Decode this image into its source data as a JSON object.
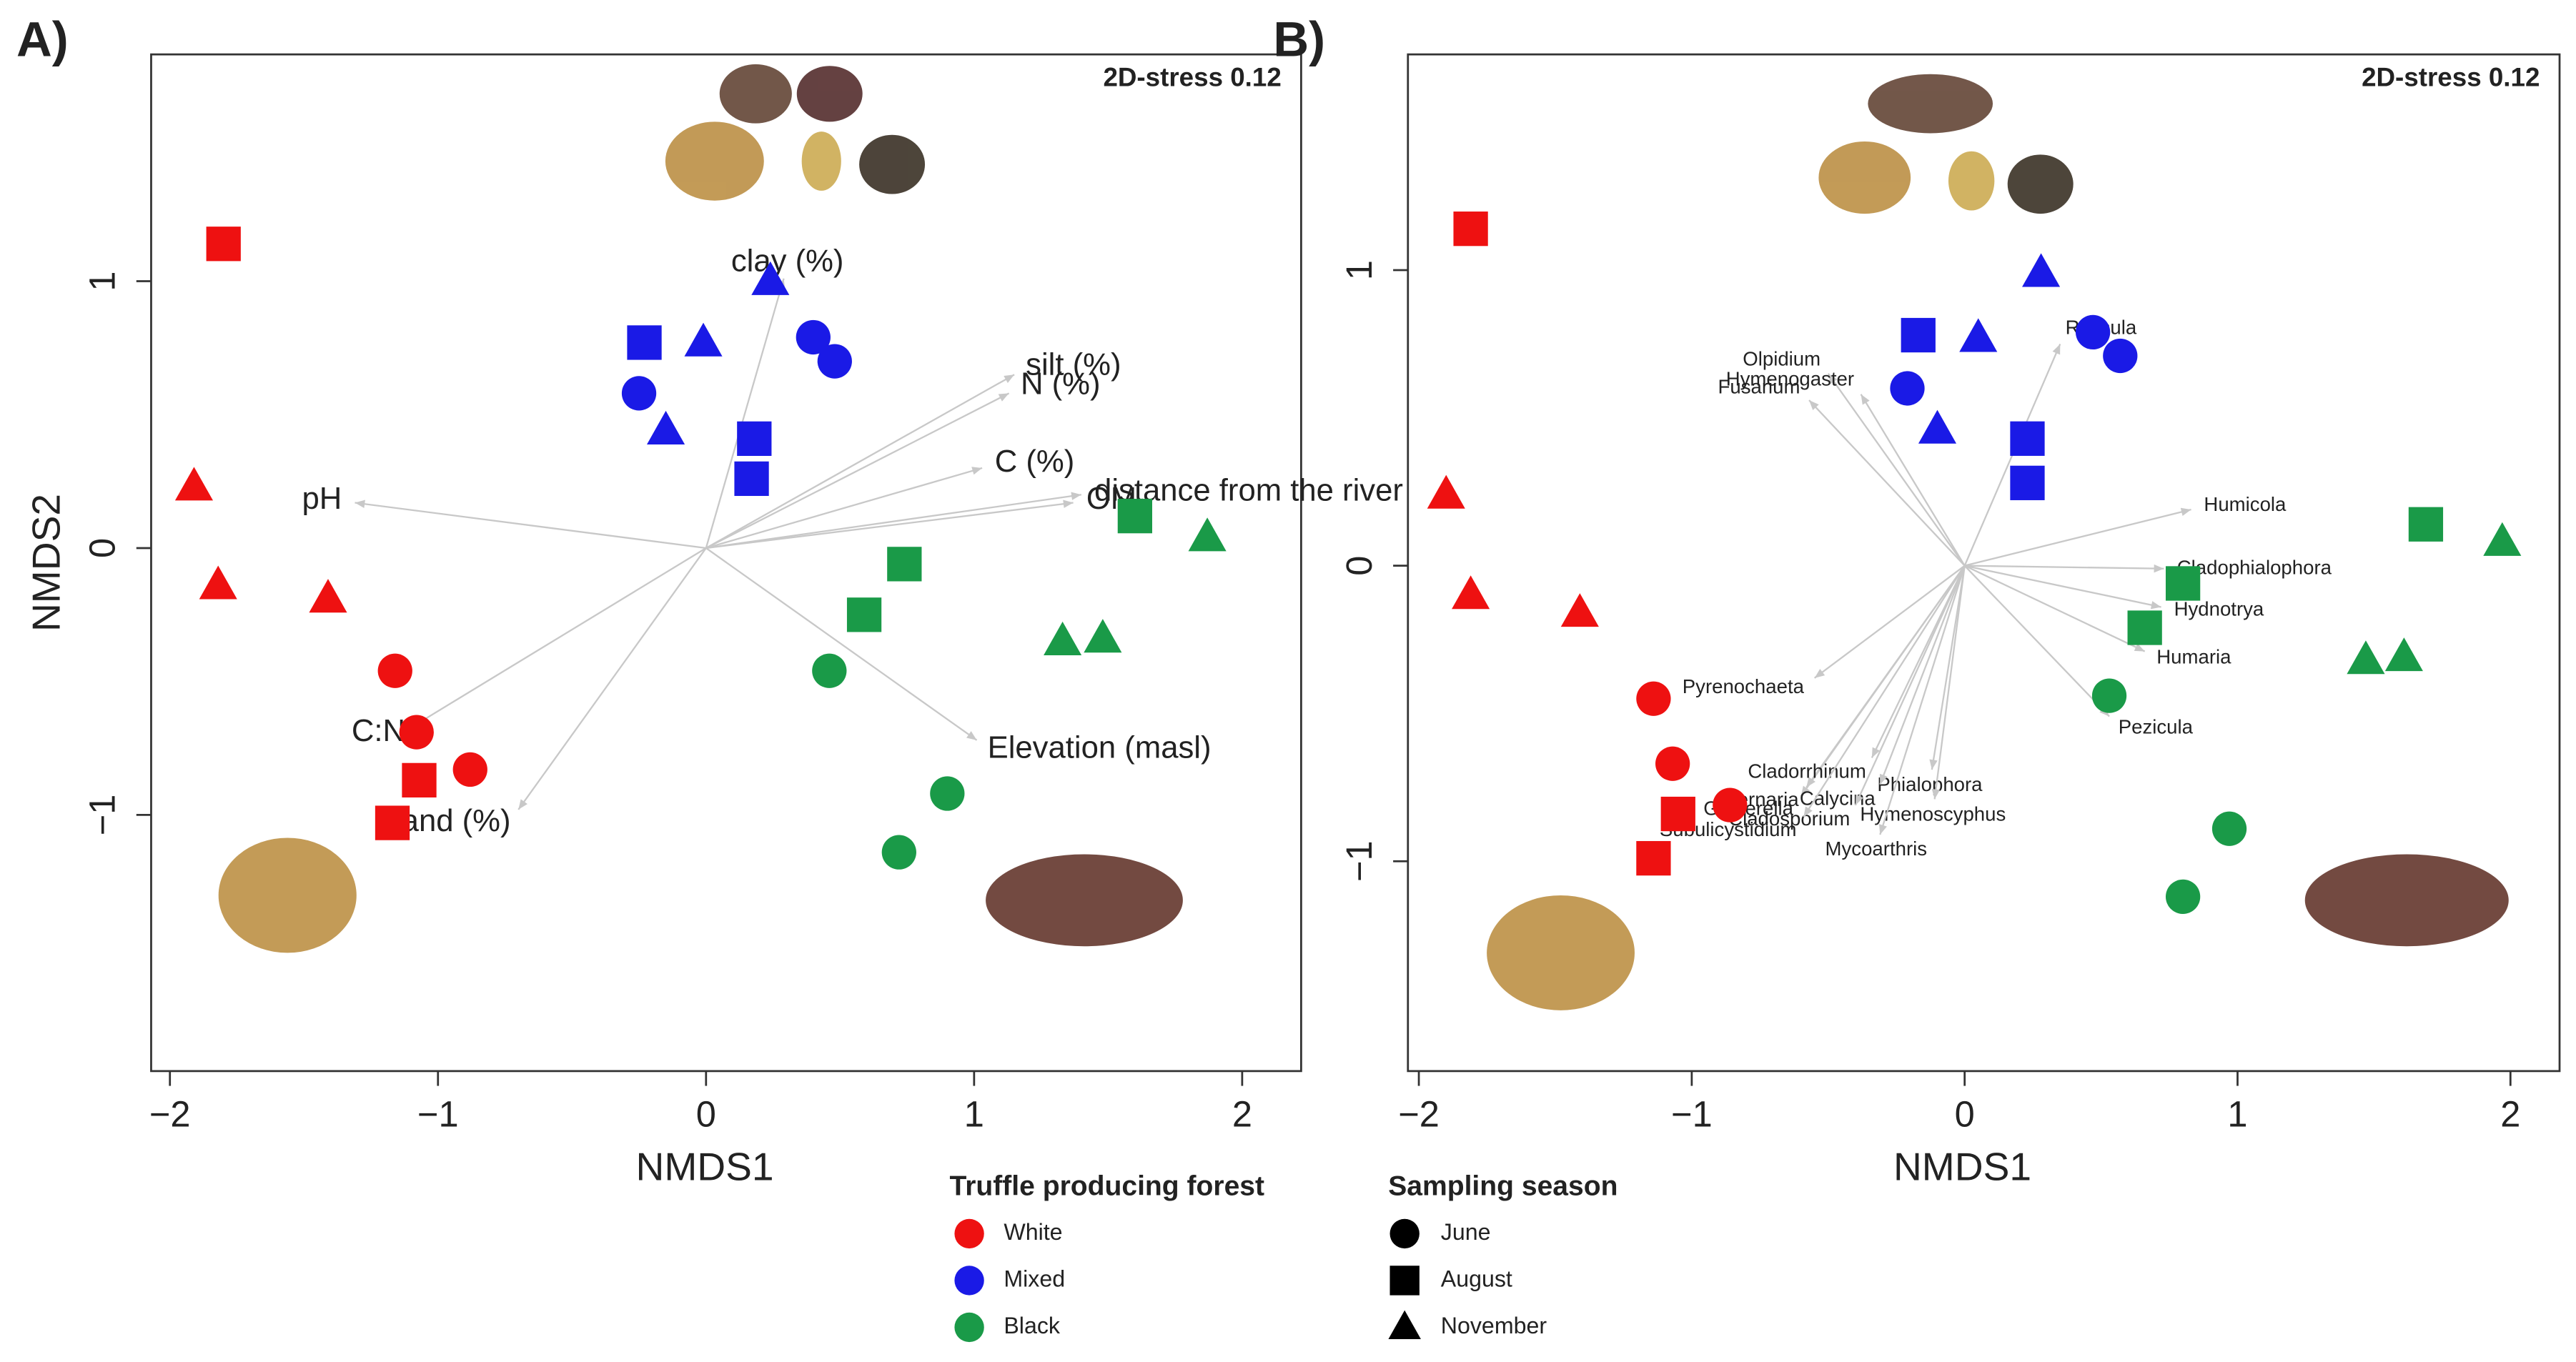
{
  "chart_data": [
    {
      "type": "scatter",
      "panel_label": "A)",
      "annotation": "2D-stress 0.12",
      "xlabel": "NMDS1",
      "ylabel": "NMDS2",
      "xlim": [
        -2.07,
        2.22
      ],
      "ylim": [
        -1.96,
        1.85
      ],
      "xticks": [
        {
          "value": -2,
          "label": "−2"
        },
        {
          "value": -1,
          "label": "−1"
        },
        0,
        1,
        2
      ],
      "yticks": [
        {
          "value": -1,
          "label": "−1"
        },
        0,
        1
      ],
      "series": [
        {
          "color": "#ee1111",
          "marker": "circle",
          "x": [
            -1.16,
            -1.08,
            -0.88
          ],
          "y": [
            -0.46,
            -0.69,
            -0.83
          ]
        },
        {
          "color": "#ee1111",
          "marker": "square",
          "x": [
            -1.8,
            -1.07,
            -1.17
          ],
          "y": [
            1.14,
            -0.87,
            -1.03
          ]
        },
        {
          "color": "#ee1111",
          "marker": "triangle",
          "x": [
            -1.91,
            -1.82,
            -1.41
          ],
          "y": [
            0.23,
            -0.14,
            -0.19
          ]
        },
        {
          "color": "#1a1ae6",
          "marker": "circle",
          "x": [
            -0.25,
            0.4,
            0.48
          ],
          "y": [
            0.58,
            0.79,
            0.7
          ]
        },
        {
          "color": "#1a1ae6",
          "marker": "square",
          "x": [
            -0.23,
            0.18,
            0.17
          ],
          "y": [
            0.77,
            0.41,
            0.26
          ]
        },
        {
          "color": "#1a1ae6",
          "marker": "triangle",
          "x": [
            -0.01,
            -0.15,
            0.24
          ],
          "y": [
            0.77,
            0.44,
            1.0
          ]
        },
        {
          "color": "#1a9a48",
          "marker": "circle",
          "x": [
            0.46,
            0.9,
            0.72
          ],
          "y": [
            -0.46,
            -0.92,
            -1.14
          ]
        },
        {
          "color": "#1a9a48",
          "marker": "square",
          "x": [
            0.74,
            0.59,
            1.6
          ],
          "y": [
            -0.06,
            -0.25,
            0.12
          ]
        },
        {
          "color": "#1a9a48",
          "marker": "triangle",
          "x": [
            1.87,
            1.33,
            1.48
          ],
          "y": [
            0.04,
            -0.35,
            -0.34
          ]
        }
      ],
      "vectors": [
        {
          "label": "clay (%)",
          "x": 0.29,
          "y": 1.01
        },
        {
          "label": "silt (%)",
          "x": 1.15,
          "y": 0.65
        },
        {
          "label": "N (%)",
          "x": 1.13,
          "y": 0.58
        },
        {
          "label": "C (%)",
          "x": 1.03,
          "y": 0.3
        },
        {
          "label": "distance from the river",
          "x": 1.4,
          "y": 0.2
        },
        {
          "label": "OM",
          "x": 1.37,
          "y": 0.17
        },
        {
          "label": "pH",
          "x": -1.31,
          "y": 0.17
        },
        {
          "label": "C:N",
          "x": -1.08,
          "y": -0.66
        },
        {
          "label": "sand (%)",
          "x": -0.7,
          "y": -0.98
        },
        {
          "label": "Elevation (masl)",
          "x": 1.01,
          "y": -0.72
        }
      ]
    },
    {
      "type": "scatter",
      "panel_label": "B)",
      "annotation": "2D-stress 0.12",
      "xlabel": "NMDS1",
      "xlim": [
        -2.04,
        2.18
      ],
      "ylim": [
        -1.71,
        1.73
      ],
      "xticks": [
        {
          "value": -2,
          "label": "−2"
        },
        {
          "value": -1,
          "label": "−1"
        },
        0,
        1,
        2
      ],
      "yticks": [
        {
          "value": -1,
          "label": "−1"
        },
        0,
        1
      ],
      "series": [
        {
          "color": "#ee1111",
          "marker": "circle",
          "x": [
            -1.14,
            -1.07,
            -0.86
          ],
          "y": [
            -0.45,
            -0.67,
            -0.81
          ]
        },
        {
          "color": "#ee1111",
          "marker": "square",
          "x": [
            -1.81,
            -1.05,
            -1.14
          ],
          "y": [
            1.14,
            -0.84,
            -0.99
          ]
        },
        {
          "color": "#ee1111",
          "marker": "triangle",
          "x": [
            -1.9,
            -1.81,
            -1.41
          ],
          "y": [
            0.24,
            -0.1,
            -0.16
          ]
        },
        {
          "color": "#1a1ae6",
          "marker": "circle",
          "x": [
            -0.21,
            0.47,
            0.57
          ],
          "y": [
            0.6,
            0.79,
            0.71
          ]
        },
        {
          "color": "#1a1ae6",
          "marker": "square",
          "x": [
            -0.17,
            0.23,
            0.23
          ],
          "y": [
            0.78,
            0.43,
            0.28
          ]
        },
        {
          "color": "#1a1ae6",
          "marker": "triangle",
          "x": [
            0.05,
            -0.1,
            0.28
          ],
          "y": [
            0.77,
            0.46,
            0.99
          ]
        },
        {
          "color": "#1a9a48",
          "marker": "circle",
          "x": [
            0.53,
            0.97,
            0.8
          ],
          "y": [
            -0.44,
            -0.89,
            -1.12
          ]
        },
        {
          "color": "#1a9a48",
          "marker": "square",
          "x": [
            0.8,
            0.66,
            1.69
          ],
          "y": [
            -0.06,
            -0.21,
            0.14
          ]
        },
        {
          "color": "#1a9a48",
          "marker": "triangle",
          "x": [
            1.97,
            1.47,
            1.61
          ],
          "y": [
            0.08,
            -0.32,
            -0.31
          ]
        }
      ],
      "vectors": [
        {
          "label": "Humicola",
          "x": 0.83,
          "y": 0.19
        },
        {
          "label": "Cladophialophora",
          "x": 0.73,
          "y": -0.01
        },
        {
          "label": "Hydnotrya",
          "x": 0.72,
          "y": -0.14
        },
        {
          "label": "Humaria",
          "x": 0.66,
          "y": -0.29
        },
        {
          "label": "Pezicula",
          "x": 0.53,
          "y": -0.51
        },
        {
          "label": "Russula",
          "x": 0.35,
          "y": 0.75
        },
        {
          "label": "Olpidium",
          "x": -0.5,
          "y": 0.65
        },
        {
          "label": "Hymenogaster",
          "x": -0.38,
          "y": 0.58
        },
        {
          "label": "Fusarium",
          "x": -0.57,
          "y": 0.56
        },
        {
          "label": "Pyrenochaeta",
          "x": -0.55,
          "y": -0.38
        },
        {
          "label": "Gibberella",
          "x": -0.6,
          "y": -0.78
        },
        {
          "label": "Alternaria",
          "x": -0.58,
          "y": -0.75
        },
        {
          "label": "Cladorrhinum",
          "x": -0.34,
          "y": -0.65
        },
        {
          "label": "Phialophora",
          "x": -0.12,
          "y": -0.69
        },
        {
          "label": "Calycina",
          "x": -0.31,
          "y": -0.74
        },
        {
          "label": "Cladosporium",
          "x": -0.4,
          "y": -0.81
        },
        {
          "label": "Hymenoscyphus",
          "x": -0.11,
          "y": -0.79
        },
        {
          "label": "Subulicystidium",
          "x": -0.59,
          "y": -0.85
        },
        {
          "label": "Mycoarthris",
          "x": -0.31,
          "y": -0.91
        }
      ]
    }
  ],
  "legends": [
    {
      "title": "Truffle producing forest",
      "items": [
        {
          "name": "White",
          "color": "#ee1111",
          "marker": "circle"
        },
        {
          "name": "Mixed",
          "color": "#1a1ae6",
          "marker": "circle"
        },
        {
          "name": "Black",
          "color": "#1a9a48",
          "marker": "circle"
        }
      ]
    },
    {
      "title": "Sampling season",
      "items": [
        {
          "name": "June",
          "color": "#000000",
          "marker": "circle"
        },
        {
          "name": "August",
          "color": "#000000",
          "marker": "square"
        },
        {
          "name": "November",
          "color": "#000000",
          "marker": "triangle"
        }
      ]
    }
  ]
}
